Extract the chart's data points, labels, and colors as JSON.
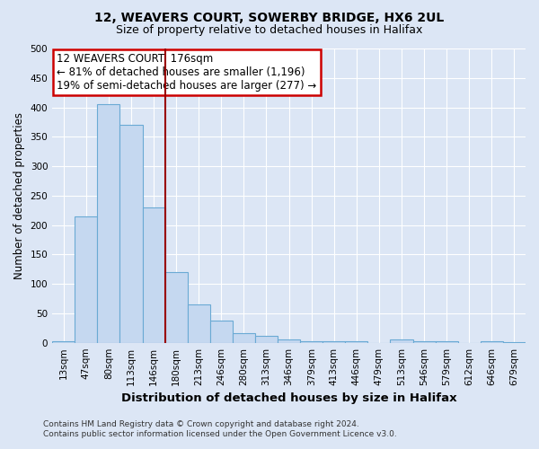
{
  "title": "12, WEAVERS COURT, SOWERBY BRIDGE, HX6 2UL",
  "subtitle": "Size of property relative to detached houses in Halifax",
  "xlabel": "Distribution of detached houses by size in Halifax",
  "ylabel": "Number of detached properties",
  "bar_labels": [
    "13sqm",
    "47sqm",
    "80sqm",
    "113sqm",
    "146sqm",
    "180sqm",
    "213sqm",
    "246sqm",
    "280sqm",
    "313sqm",
    "346sqm",
    "379sqm",
    "413sqm",
    "446sqm",
    "479sqm",
    "513sqm",
    "546sqm",
    "579sqm",
    "612sqm",
    "646sqm",
    "679sqm"
  ],
  "bar_values": [
    2,
    215,
    405,
    370,
    230,
    120,
    65,
    38,
    17,
    12,
    6,
    2,
    2,
    2,
    0,
    6,
    2,
    2,
    0,
    2,
    1
  ],
  "bar_color": "#c5d8f0",
  "bar_edge_color": "#6aaad4",
  "vline_x": 4.5,
  "vline_color": "#990000",
  "ylim": [
    0,
    500
  ],
  "yticks": [
    0,
    50,
    100,
    150,
    200,
    250,
    300,
    350,
    400,
    450,
    500
  ],
  "annotation_title": "12 WEAVERS COURT: 176sqm",
  "annotation_line1": "← 81% of detached houses are smaller (1,196)",
  "annotation_line2": "19% of semi-detached houses are larger (277) →",
  "annotation_box_color": "#ffffff",
  "annotation_box_edge": "#cc0000",
  "footer1": "Contains HM Land Registry data © Crown copyright and database right 2024.",
  "footer2": "Contains public sector information licensed under the Open Government Licence v3.0.",
  "fig_bg_color": "#dce6f5",
  "plot_bg_color": "#dce6f5",
  "grid_color": "#ffffff",
  "title_fontsize": 10,
  "subtitle_fontsize": 9,
  "tick_fontsize": 7.5,
  "ylabel_fontsize": 8.5,
  "xlabel_fontsize": 9.5,
  "footer_fontsize": 6.5,
  "annotation_fontsize": 8.5
}
